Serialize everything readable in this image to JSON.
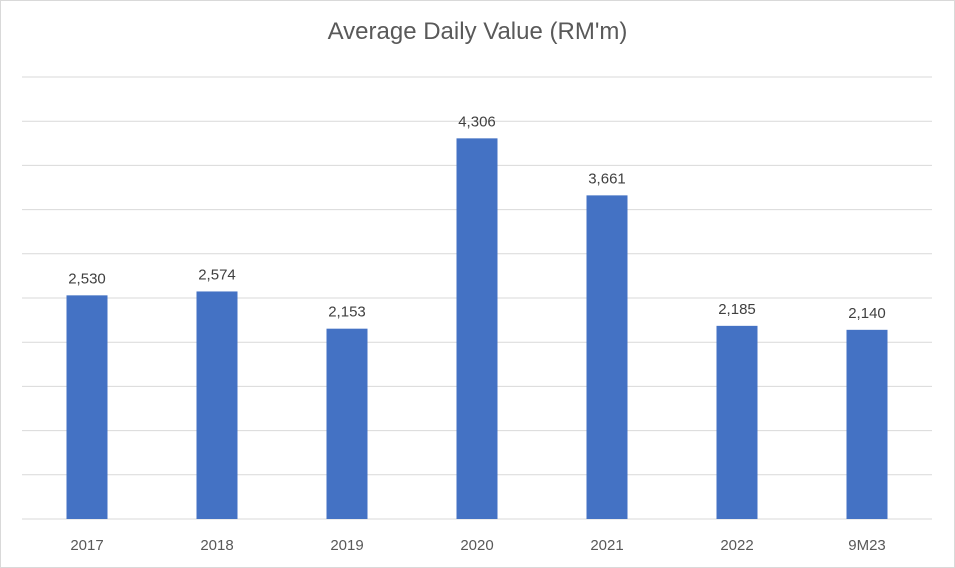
{
  "chart_data": {
    "type": "bar",
    "title": "Average Daily Value (RM'm)",
    "categories": [
      "2017",
      "2018",
      "2019",
      "2020",
      "2021",
      "2022",
      "9M23"
    ],
    "values": [
      2530,
      2574,
      2153,
      4306,
      3661,
      2185,
      2140
    ],
    "data_labels": [
      "2,530",
      "2,574",
      "2,153",
      "4,306",
      "3,661",
      "2,185",
      "2,140"
    ],
    "xlabel": "",
    "ylabel": "",
    "ylim": [
      0,
      5000
    ],
    "gridlines": true,
    "legend": "none",
    "bar_color": "#4472c4",
    "grid_color": "#d9d9d9"
  }
}
